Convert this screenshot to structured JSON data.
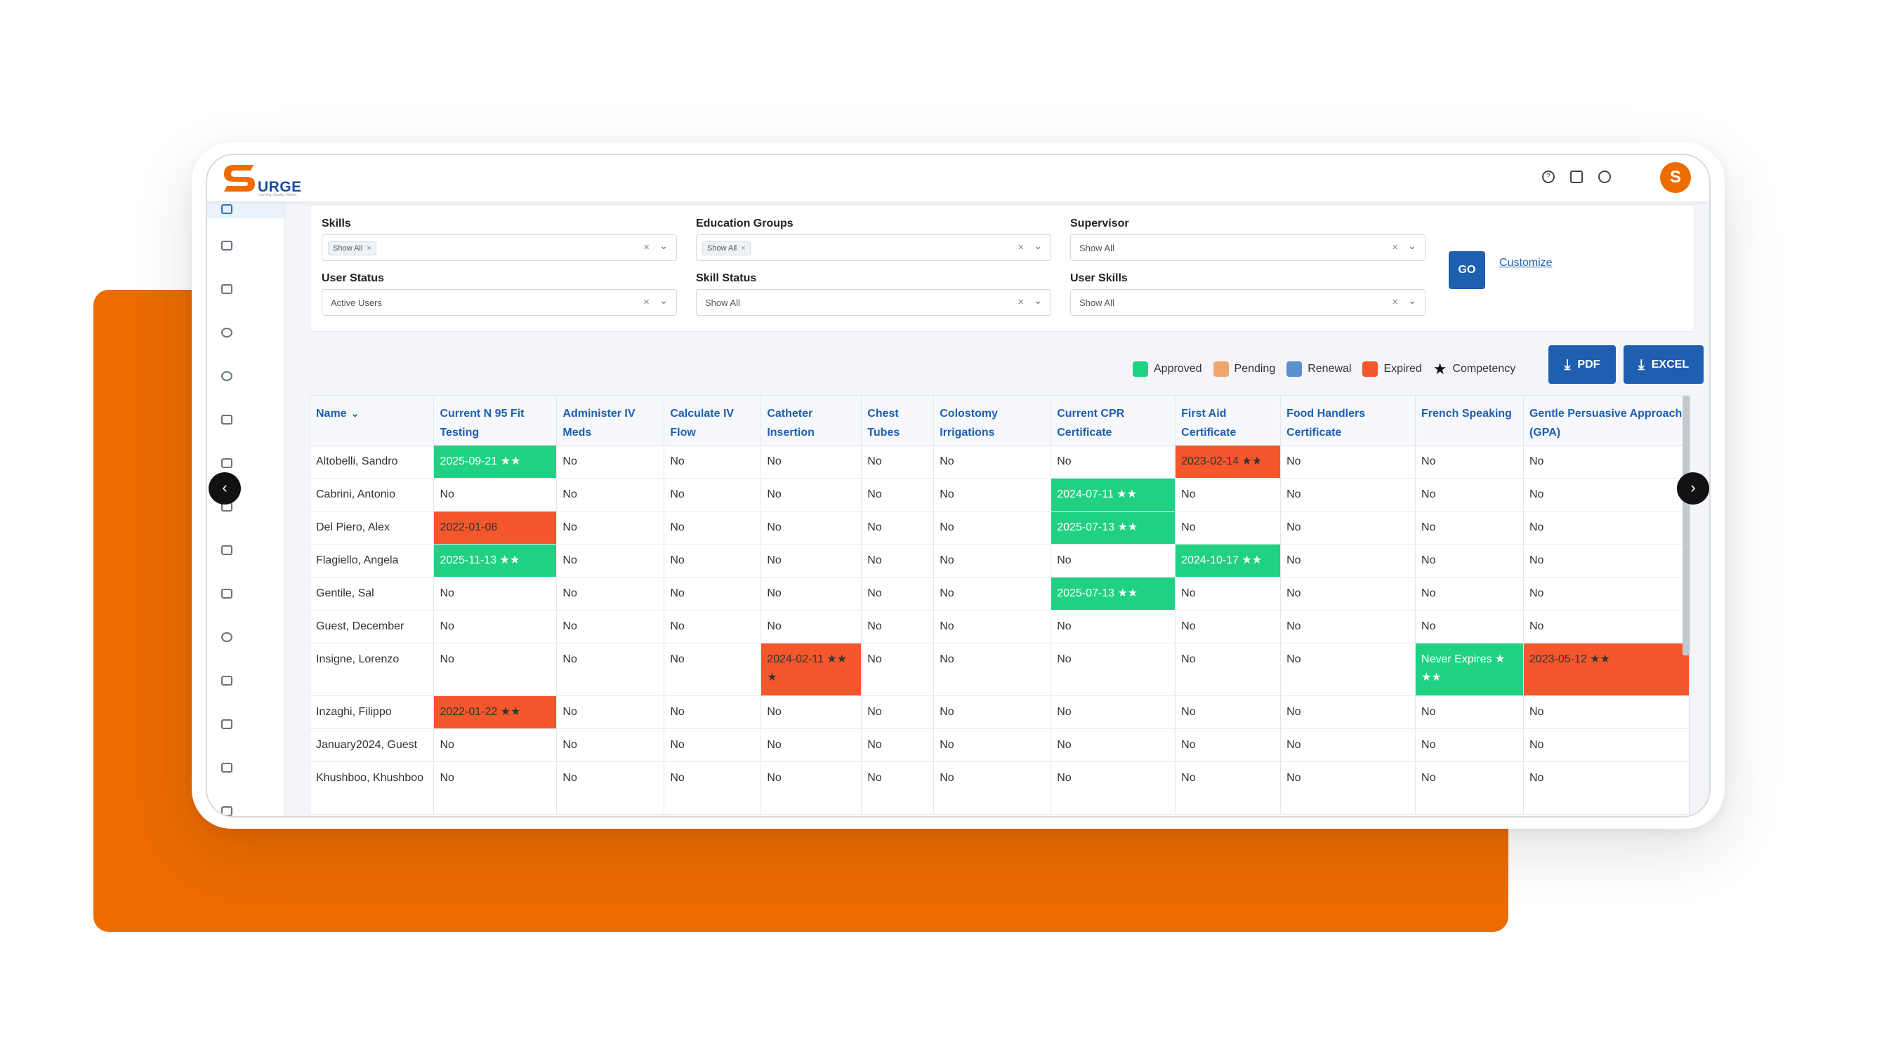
{
  "brand": {
    "logo_text": "URGE",
    "logo_letter": "S",
    "tagline": "Learning. Quality. Values.",
    "avatar_letter": "S",
    "colors": {
      "accent": "#1e5fb0",
      "orange": "#ec6c00"
    }
  },
  "topbar_icons": [
    "help-icon",
    "mail-icon",
    "bell-icon"
  ],
  "filters": {
    "skills": {
      "label": "Skills",
      "chip": "Show All"
    },
    "education_groups": {
      "label": "Education Groups",
      "chip": "Show All"
    },
    "supervisor": {
      "label": "Supervisor",
      "value": "Show All"
    },
    "user_status": {
      "label": "User Status",
      "value": "Active Users"
    },
    "skill_status": {
      "label": "Skill Status",
      "value": "Show All"
    },
    "user_skills": {
      "label": "User Skills",
      "value": "Show All"
    },
    "go_label": "GO",
    "customize_label": "Customize"
  },
  "legend": {
    "approved": "Approved",
    "pending": "Pending",
    "renewal": "Renewal",
    "expired": "Expired",
    "competency": "Competency",
    "colors": {
      "approved": "#20d183",
      "pending": "#f0a56e",
      "renewal": "#5b8fd0",
      "expired": "#f4572b"
    }
  },
  "export": {
    "pdf": "PDF",
    "excel": "EXCEL"
  },
  "table": {
    "headers": [
      "Name",
      "Current N 95 Fit Testing",
      "Administer IV Meds",
      "Calculate IV Flow",
      "Catheter Insertion",
      "Chest Tubes",
      "Colostomy Irrigations",
      "Current CPR Certificate",
      "First Aid Certificate",
      "Food Handlers Certificate",
      "French Speaking",
      "Gentle Persuasive Approach (GPA)"
    ],
    "rows": [
      {
        "cells": [
          "Altobelli, Sandro",
          "2025-09-21 ★★",
          "No",
          "No",
          "No",
          "No",
          "No",
          "No",
          "2023-02-14 ★★",
          "No",
          "No",
          "No"
        ]
      },
      {
        "cells": [
          "Cabrini, Antonio",
          "No",
          "No",
          "No",
          "No",
          "No",
          "No",
          "2024-07-11 ★★",
          "No",
          "No",
          "No",
          "No"
        ]
      },
      {
        "cells": [
          "Del Piero, Alex",
          "2022-01-08",
          "No",
          "No",
          "No",
          "No",
          "No",
          "2025-07-13 ★★",
          "No",
          "No",
          "No",
          "No"
        ]
      },
      {
        "cells": [
          "Flagiello, Angela",
          "2025-11-13 ★★",
          "No",
          "No",
          "No",
          "No",
          "No",
          "No",
          "2024-10-17 ★★",
          "No",
          "No",
          "No"
        ]
      },
      {
        "cells": [
          "Gentile, Sal",
          "No",
          "No",
          "No",
          "No",
          "No",
          "No",
          "2025-07-13 ★★",
          "No",
          "No",
          "No",
          "No"
        ]
      },
      {
        "cells": [
          "Guest, December",
          "No",
          "No",
          "No",
          "No",
          "No",
          "No",
          "No",
          "No",
          "No",
          "No",
          "No"
        ]
      },
      {
        "cells": [
          "Insigne, Lorenzo",
          "No",
          "No",
          "No",
          "2024-02-11 ★★ ★",
          "No",
          "No",
          "No",
          "No",
          "No",
          "Never Expires ★ ★★",
          "2023-05-12 ★★"
        ]
      },
      {
        "cells": [
          "Inzaghi, Filippo",
          "2022-01-22 ★★",
          "No",
          "No",
          "No",
          "No",
          "No",
          "No",
          "No",
          "No",
          "No",
          "No"
        ]
      },
      {
        "cells": [
          "January2024, Guest",
          "No",
          "No",
          "No",
          "No",
          "No",
          "No",
          "No",
          "No",
          "No",
          "No",
          "No"
        ]
      },
      {
        "cells": [
          "Khushboo, Khushboo",
          "No",
          "No",
          "No",
          "No",
          "No",
          "No",
          "No",
          "No",
          "No",
          "No",
          "No"
        ]
      }
    ],
    "status": [
      [
        "",
        "approved",
        "",
        "",
        "",
        "",
        "",
        "",
        "expired",
        "",
        "",
        ""
      ],
      [
        "",
        "",
        "",
        "",
        "",
        "",
        "",
        "approved",
        "",
        "",
        "",
        ""
      ],
      [
        "",
        "expired",
        "",
        "",
        "",
        "",
        "",
        "approved",
        "",
        "",
        "",
        ""
      ],
      [
        "",
        "approved",
        "",
        "",
        "",
        "",
        "",
        "",
        "approved",
        "",
        "",
        ""
      ],
      [
        "",
        "",
        "",
        "",
        "",
        "",
        "",
        "approved",
        "",
        "",
        "",
        ""
      ],
      [
        "",
        "",
        "",
        "",
        "",
        "",
        "",
        "",
        "",
        "",
        "",
        ""
      ],
      [
        "",
        "",
        "",
        "",
        "expired",
        "",
        "",
        "",
        "",
        "",
        "approved",
        "expired"
      ],
      [
        "",
        "expired",
        "",
        "",
        "",
        "",
        "",
        "",
        "",
        "",
        "",
        ""
      ],
      [
        "",
        "",
        "",
        "",
        "",
        "",
        "",
        "",
        "",
        "",
        "",
        ""
      ],
      [
        "",
        "",
        "",
        "",
        "",
        "",
        "",
        "",
        "",
        "",
        "",
        ""
      ]
    ]
  }
}
